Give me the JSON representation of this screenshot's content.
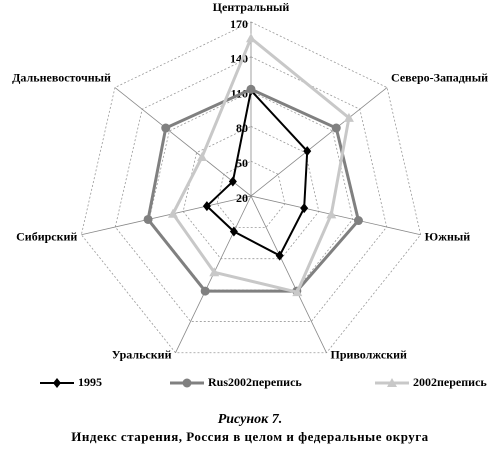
{
  "chart_data": {
    "type": "radar",
    "figure_label": "Рисунок 7.",
    "title": "Индекс старения, Россия в целом и федеральные округа",
    "categories": [
      "Центральный",
      "Северо-Западный",
      "Южный",
      "Приволжский",
      "Уральский",
      "Сибирский",
      "Дальневосточный"
    ],
    "ylim": [
      20,
      170
    ],
    "yticks": [
      20,
      50,
      80,
      110,
      140,
      170
    ],
    "grid": true,
    "legend": "bottom",
    "series": [
      {
        "name": "1995",
        "color": "#000000",
        "marker": "diamond",
        "values": [
          111,
          82,
          67,
          77,
          54,
          59,
          40
        ]
      },
      {
        "name": "Rus2002перепись",
        "color": "#808080",
        "marker": "circle",
        "values": [
          112,
          114,
          115,
          111,
          111,
          111,
          114
        ]
      },
      {
        "name": "2002перепись",
        "color": "#c8c8c8",
        "marker": "triangle",
        "values": [
          156,
          128,
          91,
          112,
          93,
          89,
          74
        ]
      }
    ]
  }
}
